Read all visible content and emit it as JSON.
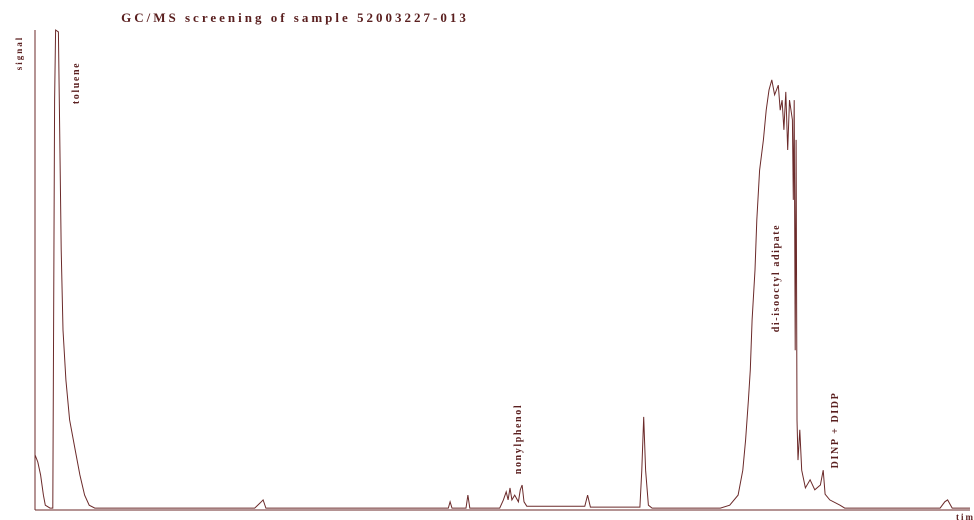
{
  "chart_data": {
    "type": "line",
    "title": "GC/MS screening of sample 52003227-013",
    "xlabel": "time",
    "ylabel": "signal",
    "annotations": [
      "toluene",
      "nonylphenol",
      "di-isooctyl adipate",
      "DINP + DIDP"
    ],
    "xlim": [
      0,
      100
    ],
    "ylim": [
      0,
      100
    ],
    "series": [
      {
        "name": "signal",
        "color": "#6b2a2a",
        "x": [
          0,
          0.3,
          0.6,
          0.9,
          1.1,
          1.6,
          1.9,
          2.1,
          2.2,
          2.5,
          2.6,
          2.8,
          3.0,
          3.3,
          3.7,
          4.3,
          4.8,
          5.3,
          5.8,
          6.4,
          23.5,
          24.1,
          24.4,
          24.7,
          44.2,
          44.4,
          44.6,
          46.1,
          46.3,
          46.5,
          49.7,
          50.1,
          50.4,
          50.6,
          50.8,
          51.0,
          51.3,
          51.7,
          51.9,
          52.1,
          52.3,
          52.6,
          58.8,
          59.1,
          59.4,
          64.7,
          64.9,
          65.1,
          65.3,
          65.6,
          66.0,
          73.3,
          74.3,
          75.2,
          75.7,
          76.0,
          76.3,
          76.5,
          76.7,
          77.0,
          77.2,
          77.5,
          77.9,
          78.2,
          78.5,
          78.8,
          79.1,
          79.5,
          79.7,
          79.9,
          80.1,
          80.3,
          80.5,
          80.7,
          81.0,
          81.1,
          81.2,
          81.3,
          81.4,
          81.5,
          81.6,
          81.8,
          82.0,
          82.4,
          82.9,
          83.4,
          84.0,
          84.3,
          84.5,
          85.0,
          86.1,
          86.6,
          96.8,
          97.3,
          97.6,
          98.1,
          100
        ],
        "values": [
          11.5,
          10,
          7.3,
          3.1,
          1.0,
          0.4,
          0.4,
          85.4,
          100,
          99.6,
          85.4,
          54.2,
          37.5,
          27.1,
          18.8,
          12.5,
          7.3,
          3.1,
          1.0,
          0.4,
          0.4,
          1.5,
          2.1,
          0.4,
          0.4,
          1.7,
          0.4,
          0.4,
          3.1,
          0.4,
          0.4,
          2.1,
          3.8,
          2.1,
          4.6,
          2.1,
          3.1,
          1.7,
          4.2,
          5.2,
          1.7,
          0.8,
          0.8,
          3.1,
          0.6,
          0.6,
          8.3,
          19.4,
          8.3,
          1.0,
          0.4,
          0.4,
          1.0,
          3.1,
          8.3,
          14.6,
          22.9,
          29.2,
          39.6,
          50,
          60.4,
          70.8,
          77.1,
          83.3,
          87.5,
          89.6,
          86.5,
          88.5,
          83.3,
          85.4,
          79.2,
          87.1,
          75,
          85.4,
          81.3,
          64.6,
          85.4,
          33.3,
          77.1,
          18.8,
          10.4,
          16.7,
          8.3,
          4.6,
          6.3,
          4.2,
          5.2,
          8.3,
          3.3,
          2.1,
          1.0,
          0.4,
          0.4,
          1.7,
          2.1,
          0.4,
          0.4
        ]
      }
    ]
  }
}
